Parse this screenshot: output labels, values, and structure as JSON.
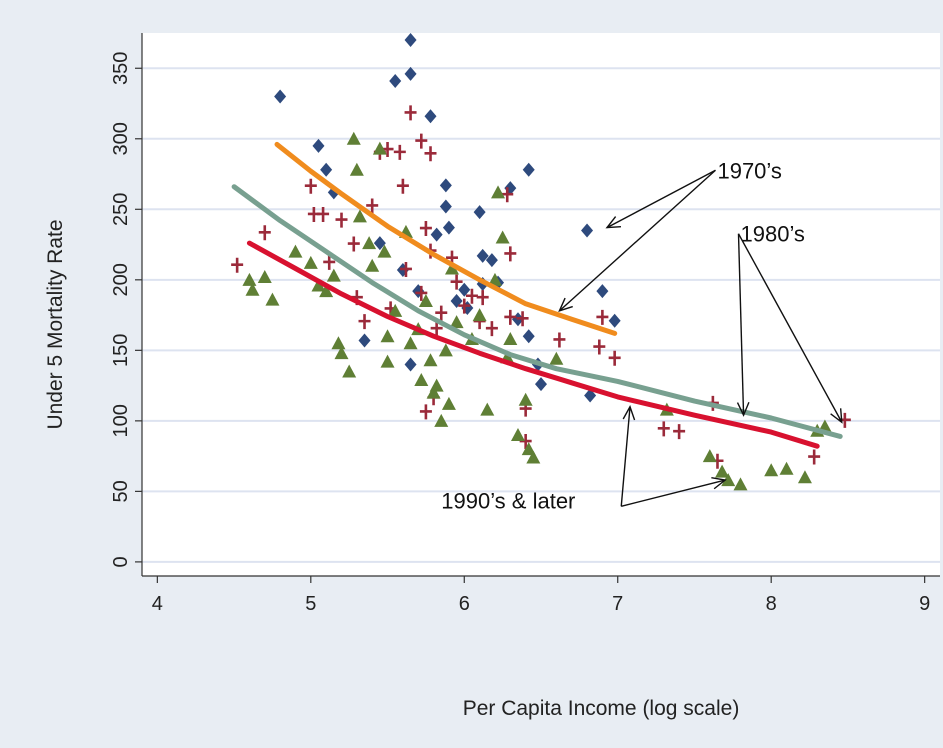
{
  "chart_data": {
    "type": "scatter",
    "title": "",
    "xlabel": "Per Capita Income (log scale)",
    "ylabel": "Under 5 Mortality Rate",
    "xlim": [
      3.9,
      9.1
    ],
    "ylim": [
      -10,
      375
    ],
    "x_ticks": [
      4,
      5,
      6,
      7,
      8,
      9
    ],
    "y_ticks": [
      0,
      50,
      100,
      150,
      200,
      250,
      300,
      350
    ],
    "grid": true,
    "colors": {
      "1970s": "#2e4a7d",
      "1980s": "#9b2a3a",
      "1990s": "#5f7f35",
      "fit_1970s": "#f08c1e",
      "fit_1980s": "#78a090",
      "fit_1990s": "#d8112f",
      "plot_bg": "#ffffff",
      "outer_bg": "#e8edf3",
      "grid": "#dde3f0"
    },
    "series": [
      {
        "marker": "diamond",
        "color_key": "1970s",
        "points": [
          [
            4.8,
            330
          ],
          [
            5.05,
            295
          ],
          [
            5.1,
            278
          ],
          [
            5.15,
            262
          ],
          [
            5.55,
            341
          ],
          [
            5.65,
            370
          ],
          [
            5.65,
            346
          ],
          [
            5.78,
            316
          ],
          [
            5.45,
            226
          ],
          [
            5.35,
            157
          ],
          [
            5.6,
            207
          ],
          [
            5.65,
            140
          ],
          [
            5.7,
            192
          ],
          [
            5.82,
            232
          ],
          [
            5.88,
            267
          ],
          [
            5.88,
            252
          ],
          [
            5.9,
            237
          ],
          [
            5.95,
            185
          ],
          [
            6.0,
            193
          ],
          [
            6.02,
            180
          ],
          [
            6.1,
            248
          ],
          [
            6.12,
            217
          ],
          [
            6.12,
            197
          ],
          [
            6.18,
            214
          ],
          [
            6.22,
            198
          ],
          [
            6.3,
            265
          ],
          [
            6.35,
            172
          ],
          [
            6.42,
            278
          ],
          [
            6.42,
            160
          ],
          [
            6.48,
            140
          ],
          [
            6.5,
            126
          ],
          [
            6.8,
            235
          ],
          [
            6.82,
            118
          ],
          [
            6.9,
            192
          ],
          [
            6.98,
            171
          ]
        ]
      },
      {
        "marker": "plus",
        "color_key": "1980s",
        "points": [
          [
            4.52,
            210
          ],
          [
            4.7,
            233
          ],
          [
            5.0,
            266
          ],
          [
            5.02,
            246
          ],
          [
            5.08,
            246
          ],
          [
            5.12,
            212
          ],
          [
            5.2,
            242
          ],
          [
            5.28,
            225
          ],
          [
            5.3,
            187
          ],
          [
            5.35,
            170
          ],
          [
            5.4,
            252
          ],
          [
            5.45,
            290
          ],
          [
            5.5,
            292
          ],
          [
            5.52,
            179
          ],
          [
            5.58,
            290
          ],
          [
            5.6,
            266
          ],
          [
            5.62,
            207
          ],
          [
            5.65,
            318
          ],
          [
            5.72,
            298
          ],
          [
            5.78,
            289
          ],
          [
            5.75,
            236
          ],
          [
            5.78,
            220
          ],
          [
            5.72,
            190
          ],
          [
            5.82,
            165
          ],
          [
            5.75,
            106
          ],
          [
            5.8,
            116
          ],
          [
            5.85,
            176
          ],
          [
            5.92,
            215
          ],
          [
            5.95,
            198
          ],
          [
            6.0,
            181
          ],
          [
            6.05,
            188
          ],
          [
            6.1,
            170
          ],
          [
            6.12,
            187
          ],
          [
            6.18,
            165
          ],
          [
            6.28,
            260
          ],
          [
            6.3,
            218
          ],
          [
            6.3,
            173
          ],
          [
            6.38,
            172
          ],
          [
            6.4,
            108
          ],
          [
            6.4,
            85
          ],
          [
            6.62,
            157
          ],
          [
            6.88,
            152
          ],
          [
            6.9,
            173
          ],
          [
            6.98,
            144
          ],
          [
            7.3,
            94
          ],
          [
            7.4,
            92
          ],
          [
            7.62,
            112
          ],
          [
            7.65,
            71
          ],
          [
            8.28,
            74
          ],
          [
            8.48,
            100
          ]
        ]
      },
      {
        "marker": "triangle",
        "color_key": "1990s",
        "points": [
          [
            4.6,
            200
          ],
          [
            4.62,
            193
          ],
          [
            4.7,
            202
          ],
          [
            4.75,
            186
          ],
          [
            4.9,
            220
          ],
          [
            5.0,
            212
          ],
          [
            5.05,
            196
          ],
          [
            5.1,
            192
          ],
          [
            5.15,
            203
          ],
          [
            5.18,
            155
          ],
          [
            5.2,
            148
          ],
          [
            5.25,
            135
          ],
          [
            5.28,
            300
          ],
          [
            5.3,
            278
          ],
          [
            5.32,
            245
          ],
          [
            5.38,
            226
          ],
          [
            5.4,
            210
          ],
          [
            5.45,
            293
          ],
          [
            5.48,
            220
          ],
          [
            5.5,
            160
          ],
          [
            5.5,
            142
          ],
          [
            5.55,
            178
          ],
          [
            5.62,
            234
          ],
          [
            5.65,
            155
          ],
          [
            5.7,
            165
          ],
          [
            5.72,
            129
          ],
          [
            5.75,
            185
          ],
          [
            5.78,
            143
          ],
          [
            5.8,
            120
          ],
          [
            5.82,
            125
          ],
          [
            5.85,
            100
          ],
          [
            5.88,
            150
          ],
          [
            5.9,
            112
          ],
          [
            5.92,
            208
          ],
          [
            5.95,
            170
          ],
          [
            6.05,
            158
          ],
          [
            6.1,
            175
          ],
          [
            6.15,
            108
          ],
          [
            6.2,
            200
          ],
          [
            6.22,
            262
          ],
          [
            6.25,
            230
          ],
          [
            6.28,
            145
          ],
          [
            6.3,
            158
          ],
          [
            6.35,
            90
          ],
          [
            6.4,
            115
          ],
          [
            6.42,
            80
          ],
          [
            6.45,
            74
          ],
          [
            6.6,
            144
          ],
          [
            7.32,
            108
          ],
          [
            7.6,
            75
          ],
          [
            7.68,
            64
          ],
          [
            7.72,
            58
          ],
          [
            7.8,
            55
          ],
          [
            8.0,
            65
          ],
          [
            8.1,
            66
          ],
          [
            8.22,
            60
          ],
          [
            8.3,
            93
          ],
          [
            8.35,
            96
          ]
        ]
      }
    ],
    "fit_lines": [
      {
        "color_key": "fit_1970s",
        "points": [
          [
            4.78,
            296
          ],
          [
            5.0,
            277
          ],
          [
            5.2,
            261
          ],
          [
            5.5,
            238
          ],
          [
            5.8,
            218
          ],
          [
            6.1,
            200
          ],
          [
            6.4,
            183
          ],
          [
            6.7,
            172
          ],
          [
            6.98,
            162
          ]
        ]
      },
      {
        "color_key": "fit_1980s",
        "points": [
          [
            4.5,
            266
          ],
          [
            4.8,
            242
          ],
          [
            5.1,
            220
          ],
          [
            5.4,
            198
          ],
          [
            5.7,
            178
          ],
          [
            6.0,
            161
          ],
          [
            6.3,
            147
          ],
          [
            6.6,
            137
          ],
          [
            7.0,
            128
          ],
          [
            7.5,
            114
          ],
          [
            8.0,
            102
          ],
          [
            8.45,
            89
          ]
        ]
      },
      {
        "color_key": "fit_1990s",
        "points": [
          [
            4.6,
            226
          ],
          [
            4.9,
            208
          ],
          [
            5.2,
            190
          ],
          [
            5.5,
            174
          ],
          [
            5.8,
            160
          ],
          [
            6.1,
            148
          ],
          [
            6.4,
            137
          ],
          [
            6.7,
            127
          ],
          [
            7.0,
            117
          ],
          [
            7.5,
            104
          ],
          [
            8.0,
            92
          ],
          [
            8.3,
            82
          ]
        ]
      }
    ],
    "annotations": [
      {
        "text": "1970’s",
        "x": 7.65,
        "y": 272,
        "arrows_to": [
          [
            6.93,
            237
          ],
          [
            6.62,
            178
          ]
        ]
      },
      {
        "text": "1980’s",
        "x": 7.8,
        "y": 227,
        "arrows_to": [
          [
            7.82,
            104
          ],
          [
            8.46,
            99
          ]
        ]
      },
      {
        "text": "1990’s & later",
        "x": 5.85,
        "y": 38,
        "arrows_to": [
          [
            7.08,
            110
          ],
          [
            7.7,
            58
          ]
        ]
      }
    ]
  }
}
